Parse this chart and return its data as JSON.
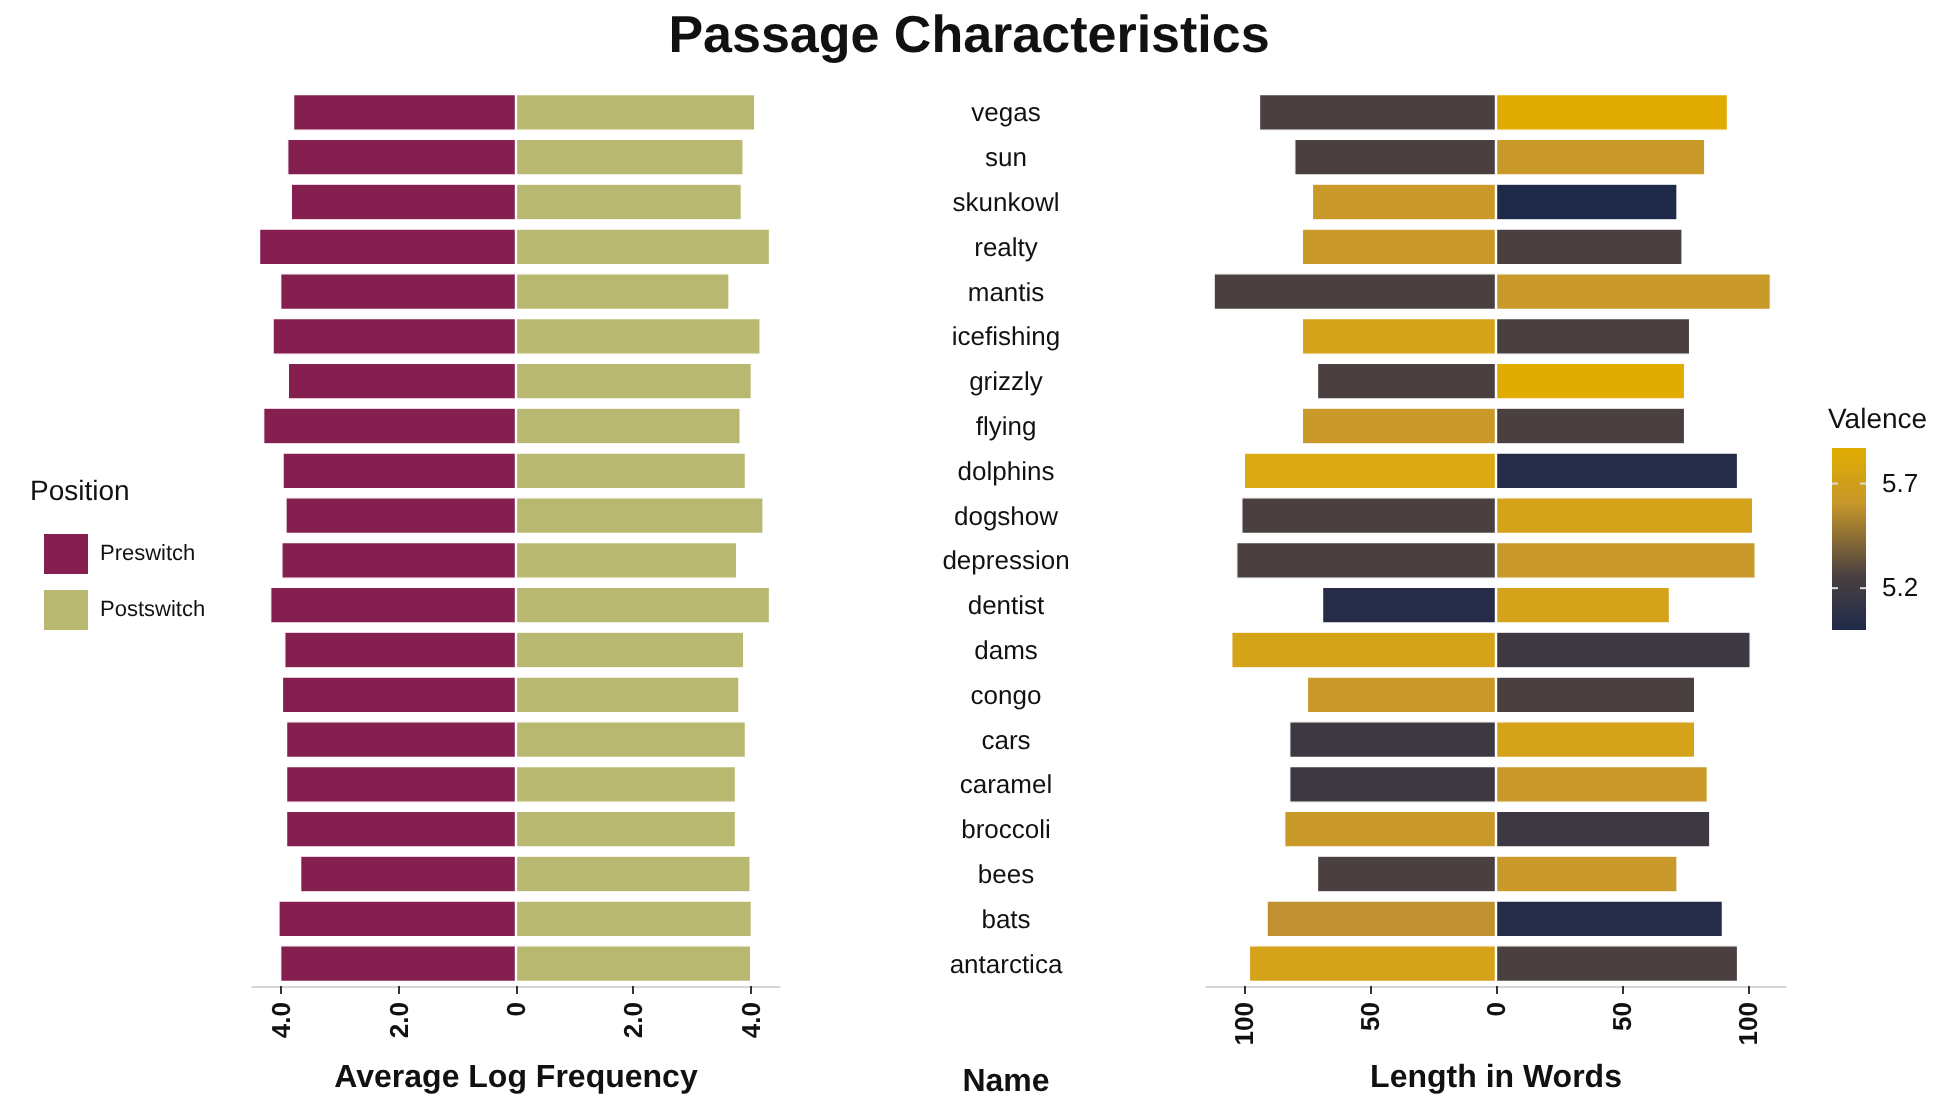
{
  "chart_data": [
    {
      "type": "bar",
      "title": "Passage Characteristics",
      "orientation": "horizontal",
      "stacked": true,
      "xlabel": "Average Log Frequency",
      "annotations": [
        "Name"
      ],
      "legend": "left",
      "legend_title": "Position",
      "categories": [
        "vegas",
        "sun",
        "skunkowl",
        "realty",
        "mantis",
        "icefishing",
        "grizzly",
        "flying",
        "dolphins",
        "dogshow",
        "depression",
        "dentist",
        "dams",
        "congo",
        "cars",
        "caramel",
        "broccoli",
        "bees",
        "bats",
        "antarctica"
      ],
      "xlim": [
        -4.5,
        4.5
      ],
      "xticks": [
        {
          "value": -4,
          "label": "4.0"
        },
        {
          "value": -2,
          "label": "2.0"
        },
        0,
        {
          "value": 2,
          "label": "2.0"
        },
        {
          "value": 4,
          "label": "4.0"
        }
      ],
      "series": [
        {
          "name": "Preswitch",
          "color": "#841f4f",
          "values": [
            -3.8,
            -3.9,
            -3.84,
            -4.38,
            -4.02,
            -4.15,
            -3.89,
            -4.31,
            -3.98,
            -3.93,
            -4.0,
            -4.19,
            -3.95,
            -3.99,
            -3.92,
            -3.92,
            -3.92,
            -3.68,
            -4.05,
            -4.02
          ]
        },
        {
          "name": "Postswitch",
          "color": "#b8b870",
          "values": [
            4.08,
            3.88,
            3.85,
            4.33,
            3.64,
            4.17,
            4.02,
            3.83,
            3.92,
            4.22,
            3.77,
            4.33,
            3.89,
            3.81,
            3.92,
            3.75,
            3.75,
            4.0,
            4.02,
            4.01
          ]
        }
      ]
    },
    {
      "type": "bar",
      "orientation": "horizontal",
      "stacked": true,
      "xlabel": "Length in Words",
      "tick_labels": "x",
      "clabel": "Valence",
      "clim": [
        5.0,
        5.87
      ],
      "cticks": [
        5.2,
        5.7
      ],
      "categories": [
        null,
        null,
        null,
        null,
        null,
        null,
        null,
        null,
        null,
        null,
        null,
        null,
        null,
        null,
        null,
        null,
        null,
        null,
        null,
        null
      ],
      "xlim": [
        -115,
        115
      ],
      "xticks": [
        {
          "value": -100,
          "label": "100"
        },
        {
          "value": -50,
          "label": "50"
        },
        0,
        50,
        100
      ],
      "series": [
        {
          "values": [
            -94,
            -80,
            -73,
            -77,
            -112,
            -77,
            -71,
            -77,
            -100,
            -101,
            -103,
            -69,
            -105,
            -75,
            -82,
            -82,
            -84,
            -71,
            -91,
            -98
          ],
          "colors": [
            "#4a4040",
            "#4a4040",
            "#c9992a",
            "#c9992a",
            "#4a4040",
            "#d4a31a",
            "#4a4040",
            "#c9992a",
            "#dba912",
            "#4a4040",
            "#4a4040",
            "#262c48",
            "#d4a31a",
            "#c9992a",
            "#3e3842",
            "#3e3842",
            "#c9992a",
            "#4a4040",
            "#bf9130",
            "#d4a31a"
          ]
        },
        {
          "values": [
            92,
            83,
            72,
            74,
            109,
            77,
            75,
            75,
            96,
            102,
            103,
            69,
            101,
            79,
            79,
            84,
            85,
            72,
            90,
            96
          ],
          "colors": [
            "#e0ac00",
            "#c9992a",
            "#1f2a4a",
            "#4a4040",
            "#c9992a",
            "#4a4040",
            "#e0ac00",
            "#4a4040",
            "#262c48",
            "#d4a31a",
            "#c9992a",
            "#d4a31a",
            "#3e3842",
            "#4a4040",
            "#d4a31a",
            "#c9992a",
            "#3e3842",
            "#c9992a",
            "#262c48",
            "#4a4040"
          ]
        }
      ]
    }
  ]
}
